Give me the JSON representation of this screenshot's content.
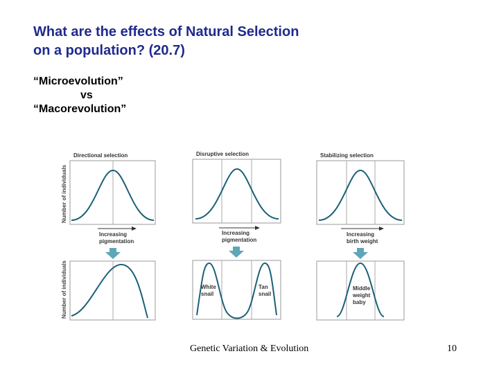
{
  "slide": {
    "title_line1": "What are the effects of Natural Selection",
    "title_line2": "on a population? (20.7)",
    "subtitle_line1": "“Microevolution”",
    "subtitle_line2": "vs",
    "subtitle_line3": "“Macorevolution”",
    "footer_text": "Genetic Variation & Evolution",
    "page_number": "10"
  },
  "figure": {
    "y_axis_label": "Number of individuals",
    "curve_color": "#1b5f78",
    "arrow_color": "#5ea6b8",
    "panels": [
      {
        "title": "Directional selection",
        "axis_label_line1": "Increasing",
        "axis_label_line2": "pigmentation",
        "bottom_labels": []
      },
      {
        "title": "Disruptive selection",
        "axis_label_line1": "Increasing",
        "axis_label_line2": "pigmentation",
        "bottom_labels": [
          {
            "line1": "White",
            "line2": "snail"
          },
          {
            "line1": "Tan",
            "line2": "snail"
          }
        ]
      },
      {
        "title": "Stabilizing selection",
        "axis_label_line1": "Increasing",
        "axis_label_line2": "birth weight",
        "bottom_labels": [
          {
            "line1": "Middle",
            "line2": "weight",
            "line3": "baby"
          }
        ]
      }
    ]
  }
}
